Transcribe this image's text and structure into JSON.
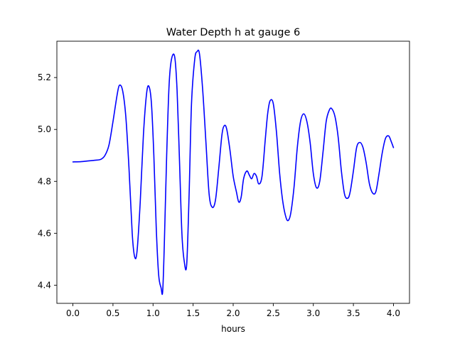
{
  "chart_data": {
    "type": "line",
    "title": "Water Depth h at gauge 6",
    "xlabel": "hours",
    "ylabel": "",
    "xlim": [
      -0.2,
      4.2
    ],
    "ylim": [
      4.33,
      5.34
    ],
    "grid": false,
    "xticks": [
      0.0,
      0.5,
      1.0,
      1.5,
      2.0,
      2.5,
      3.0,
      3.5,
      4.0
    ],
    "xtick_labels": [
      "0.0",
      "0.5",
      "1.0",
      "1.5",
      "2.0",
      "2.5",
      "3.0",
      "3.5",
      "4.0"
    ],
    "yticks": [
      4.4,
      4.6,
      4.8,
      5.0,
      5.2
    ],
    "ytick_labels": [
      "4.4",
      "4.6",
      "4.8",
      "5.0",
      "5.2"
    ],
    "series": [
      {
        "color": "#0000ff",
        "x": [
          0.0,
          0.1,
          0.2,
          0.3,
          0.35,
          0.4,
          0.45,
          0.5,
          0.55,
          0.58,
          0.62,
          0.66,
          0.7,
          0.74,
          0.77,
          0.8,
          0.84,
          0.88,
          0.92,
          0.95,
          0.98,
          1.01,
          1.04,
          1.07,
          1.1,
          1.12,
          1.14,
          1.17,
          1.2,
          1.23,
          1.27,
          1.3,
          1.33,
          1.36,
          1.39,
          1.42,
          1.45,
          1.48,
          1.52,
          1.55,
          1.58,
          1.62,
          1.66,
          1.7,
          1.74,
          1.78,
          1.82,
          1.86,
          1.89,
          1.92,
          1.96,
          2.0,
          2.04,
          2.07,
          2.1,
          2.13,
          2.17,
          2.2,
          2.23,
          2.26,
          2.29,
          2.32,
          2.36,
          2.4,
          2.43,
          2.46,
          2.5,
          2.54,
          2.58,
          2.62,
          2.66,
          2.69,
          2.72,
          2.76,
          2.8,
          2.84,
          2.88,
          2.92,
          2.96,
          3.0,
          3.04,
          3.08,
          3.12,
          3.16,
          3.2,
          3.23,
          3.27,
          3.31,
          3.35,
          3.39,
          3.43,
          3.46,
          3.5,
          3.54,
          3.58,
          3.62,
          3.66,
          3.7,
          3.74,
          3.78,
          3.82,
          3.86,
          3.9,
          3.94,
          3.97,
          4.0
        ],
        "y": [
          4.875,
          4.876,
          4.879,
          4.882,
          4.885,
          4.9,
          4.94,
          5.03,
          5.13,
          5.17,
          5.15,
          5.05,
          4.85,
          4.6,
          4.51,
          4.53,
          4.72,
          4.98,
          5.14,
          5.165,
          5.1,
          4.9,
          4.62,
          4.44,
          4.39,
          4.375,
          4.55,
          4.9,
          5.17,
          5.27,
          5.28,
          5.15,
          4.88,
          4.6,
          4.49,
          4.48,
          4.75,
          5.1,
          5.27,
          5.3,
          5.29,
          5.15,
          4.95,
          4.75,
          4.7,
          4.73,
          4.85,
          4.98,
          5.015,
          5.0,
          4.92,
          4.82,
          4.76,
          4.72,
          4.74,
          4.81,
          4.84,
          4.825,
          4.81,
          4.83,
          4.82,
          4.79,
          4.82,
          4.96,
          5.06,
          5.11,
          5.1,
          4.99,
          4.83,
          4.72,
          4.66,
          4.65,
          4.68,
          4.78,
          4.93,
          5.03,
          5.06,
          5.03,
          4.95,
          4.83,
          4.775,
          4.8,
          4.91,
          5.03,
          5.075,
          5.08,
          5.05,
          4.97,
          4.84,
          4.75,
          4.735,
          4.76,
          4.84,
          4.93,
          4.95,
          4.93,
          4.87,
          4.79,
          4.755,
          4.76,
          4.83,
          4.91,
          4.965,
          4.975,
          4.955,
          4.93
        ]
      }
    ]
  }
}
